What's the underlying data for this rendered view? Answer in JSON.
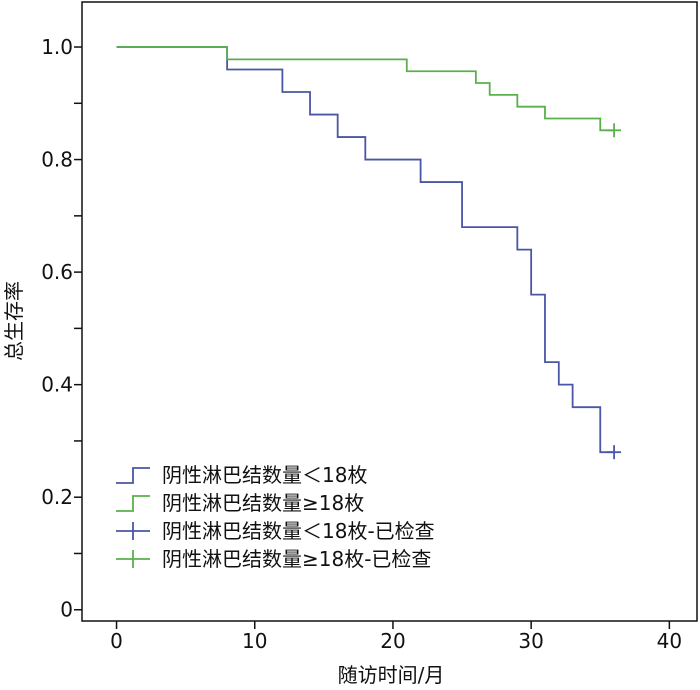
{
  "chart_data": {
    "type": "line",
    "xlabel": "随访时间/月",
    "ylabel": "总生存率",
    "xlim": [
      -2.5,
      42
    ],
    "ylim": [
      -0.02,
      1.08
    ],
    "xticks": [
      0,
      10,
      20,
      30,
      40
    ],
    "xtick_labels": [
      "0",
      "10",
      "20",
      "30",
      "40"
    ],
    "yticks": [
      0,
      0.2,
      0.4,
      0.6,
      0.8,
      1.0
    ],
    "ytick_labels": [
      "0",
      "0.2",
      "0.4",
      "0.6",
      "0.8",
      "1.0"
    ],
    "minor_yticks": [
      0.1,
      0.3,
      0.5,
      0.7,
      0.9
    ],
    "grid": false,
    "legend_position": "bottom-left",
    "series": [
      {
        "name": "阴性淋巴结数量＜18枚",
        "color": "#4a56a6",
        "step": true,
        "x": [
          0,
          8,
          12,
          14,
          16,
          18,
          22,
          25,
          29,
          30,
          31,
          32,
          33,
          35,
          36
        ],
        "y": [
          1.0,
          0.96,
          0.92,
          0.88,
          0.84,
          0.8,
          0.76,
          0.68,
          0.64,
          0.56,
          0.44,
          0.4,
          0.36,
          0.28,
          0.28
        ]
      },
      {
        "name": "阴性淋巴结数量≥18枚",
        "color": "#5ab04b",
        "step": true,
        "x": [
          0,
          8,
          21,
          26,
          27,
          29,
          31,
          35,
          36
        ],
        "y": [
          1.0,
          0.978,
          0.957,
          0.936,
          0.915,
          0.894,
          0.873,
          0.852,
          0.852
        ]
      }
    ],
    "censored": [
      {
        "name": "阴性淋巴结数量＜18枚-已检查",
        "color": "#4a56a6",
        "x": [
          36
        ],
        "y": [
          0.28
        ]
      },
      {
        "name": "阴性淋巴结数量≥18枚-已检查",
        "color": "#5ab04b",
        "x": [
          36
        ],
        "y": [
          0.852
        ]
      }
    ],
    "legend": [
      {
        "label": "阴性淋巴结数量＜18枚",
        "symbol": "step",
        "color": "#4a56a6"
      },
      {
        "label": "阴性淋巴结数量≥18枚",
        "symbol": "step",
        "color": "#5ab04b"
      },
      {
        "label": "阴性淋巴结数量＜18枚-已检查",
        "symbol": "cross",
        "color": "#4a56a6"
      },
      {
        "label": "阴性淋巴结数量≥18枚-已检查",
        "symbol": "cross",
        "color": "#5ab04b"
      }
    ]
  }
}
